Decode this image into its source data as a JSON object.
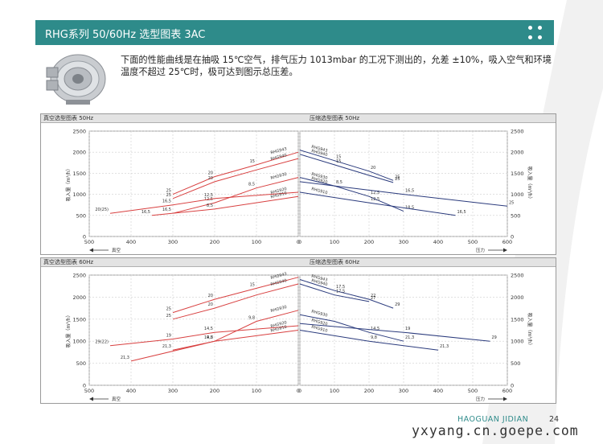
{
  "header": {
    "title": "RHG系列 50/60Hz 选型图表 3AC"
  },
  "intro": "下面的性能曲线是在抽吸 15℃空气，排气压力 1013mbar 的工况下测出的，允差 ±10%，吸入空气和环境温度不超过 25℃时，极可达到图示总压差。",
  "footer": {
    "brand": "HAOGUAN JIDIAN",
    "page": "24",
    "watermark": "yxyang.cn.goepe.com"
  },
  "colors": {
    "accent": "#2e8b8a",
    "vacuum_curve": "#d84040",
    "pressure_curve": "#2a3a7c"
  },
  "icons": {
    "menu": "grid-dots-icon",
    "product": "ring-blower-icon"
  },
  "chart_data": [
    {
      "type": "line",
      "title": "真空选型图表 50Hz",
      "ylabel": "吸入量（m³/h）",
      "x_arrow_label": "真空",
      "x_ticks": [
        500,
        400,
        300,
        200,
        100,
        0
      ],
      "xlim": [
        500,
        0
      ],
      "ylim": [
        0,
        2500
      ],
      "y_ticks": [
        0,
        500,
        1000,
        1500,
        2000,
        2500
      ],
      "series": [
        {
          "name": "RHG943",
          "x": [
            300,
            200,
            100,
            0
          ],
          "y": [
            1000,
            1420,
            1700,
            2000
          ],
          "point_labels": [
            "25",
            "20",
            "15",
            ""
          ]
        },
        {
          "name": "RHG940",
          "x": [
            300,
            200,
            100,
            0
          ],
          "y": [
            900,
            1300,
            1580,
            1850
          ],
          "point_labels": [
            "25",
            "20",
            "",
            ""
          ]
        },
        {
          "name": "RHG930",
          "x": [
            300,
            200,
            100,
            0
          ],
          "y": [
            550,
            800,
            1150,
            1400
          ],
          "point_labels": [
            "16,5",
            "12,5",
            "8,5",
            ""
          ]
        },
        {
          "name": "RHG920",
          "x": [
            450,
            300,
            200,
            0
          ],
          "y": [
            550,
            750,
            900,
            1050
          ],
          "point_labels": [
            "20(25)",
            "16,5",
            "12,5",
            ""
          ]
        },
        {
          "name": "RHG910",
          "x": [
            350,
            200,
            0
          ],
          "y": [
            500,
            650,
            950
          ],
          "point_labels": [
            "16,5",
            "8,5",
            ""
          ]
        }
      ]
    },
    {
      "type": "line",
      "title": "压缩选型图表 50Hz",
      "ylabel": "吸入量（m³/h）",
      "x_arrow_label": "压力",
      "x_ticks": [
        0,
        100,
        200,
        300,
        400,
        500,
        600
      ],
      "xlim": [
        0,
        600
      ],
      "ylim": [
        0,
        2500
      ],
      "y_ticks": [
        0,
        500,
        1000,
        1500,
        2000,
        2500
      ],
      "series": [
        {
          "name": "RHG943",
          "x": [
            0,
            100,
            200,
            270
          ],
          "y": [
            2050,
            1800,
            1550,
            1330
          ],
          "point_labels": [
            "",
            "15",
            "20",
            "25"
          ]
        },
        {
          "name": "RHG940",
          "x": [
            0,
            100,
            200,
            270
          ],
          "y": [
            1950,
            1700,
            1450,
            1280
          ],
          "point_labels": [
            "",
            "15",
            "",
            "25"
          ]
        },
        {
          "name": "RHG930",
          "x": [
            0,
            100,
            200,
            300
          ],
          "y": [
            1400,
            1200,
            950,
            600
          ],
          "point_labels": [
            "",
            "8,5",
            "12,5",
            "18,5"
          ]
        },
        {
          "name": "RHG920",
          "x": [
            0,
            300,
            600
          ],
          "y": [
            1300,
            1000,
            720
          ],
          "point_labels": [
            "",
            "16,5",
            "25"
          ]
        },
        {
          "name": "RHG910",
          "x": [
            0,
            200,
            450
          ],
          "y": [
            1050,
            800,
            500
          ],
          "point_labels": [
            "",
            "12,5",
            "16,5"
          ]
        }
      ]
    },
    {
      "type": "line",
      "title": "真空选型图表 60Hz",
      "ylabel": "吸入量（m³/h）",
      "x_arrow_label": "真空",
      "x_ticks": [
        500,
        400,
        300,
        200,
        100,
        0
      ],
      "xlim": [
        500,
        0
      ],
      "ylim": [
        0,
        2500
      ],
      "y_ticks": [
        0,
        500,
        1000,
        1500,
        2000,
        2500
      ],
      "series": [
        {
          "name": "RHG943",
          "x": [
            300,
            200,
            100,
            0
          ],
          "y": [
            1650,
            1950,
            2200,
            2450
          ],
          "point_labels": [
            "25",
            "20",
            "15",
            ""
          ]
        },
        {
          "name": "RHG940",
          "x": [
            300,
            200,
            100,
            0
          ],
          "y": [
            1500,
            1750,
            2050,
            2300
          ],
          "point_labels": [
            "25",
            "20",
            "",
            ""
          ]
        },
        {
          "name": "RHG930",
          "x": [
            400,
            200,
            100,
            0
          ],
          "y": [
            550,
            1000,
            1450,
            1700
          ],
          "point_labels": [
            "21,3",
            "14,5",
            "9,8",
            ""
          ]
        },
        {
          "name": "RHG920",
          "x": [
            450,
            300,
            200,
            0
          ],
          "y": [
            900,
            1050,
            1200,
            1350
          ],
          "point_labels": [
            "29(22)",
            "19",
            "14,5",
            ""
          ]
        },
        {
          "name": "RHG910",
          "x": [
            300,
            200,
            0
          ],
          "y": [
            800,
            1000,
            1250
          ],
          "point_labels": [
            "21,3",
            "9,8",
            ""
          ]
        }
      ]
    },
    {
      "type": "line",
      "title": "压缩选型图表 60Hz",
      "ylabel": "吸入量（m³/h）",
      "x_arrow_label": "压力",
      "x_ticks": [
        0,
        100,
        200,
        300,
        400,
        500,
        600
      ],
      "xlim": [
        0,
        600
      ],
      "ylim": [
        0,
        2500
      ],
      "y_ticks": [
        0,
        500,
        1000,
        1500,
        2000,
        2500
      ],
      "series": [
        {
          "name": "RHG943",
          "x": [
            0,
            100,
            200,
            270
          ],
          "y": [
            2400,
            2150,
            1950,
            1750
          ],
          "point_labels": [
            "",
            "17,5",
            "22",
            "29"
          ]
        },
        {
          "name": "RHG940",
          "x": [
            0,
            100,
            200
          ],
          "y": [
            2300,
            2050,
            1900
          ],
          "point_labels": [
            "",
            "17,5",
            "27"
          ]
        },
        {
          "name": "RHG930",
          "x": [
            0,
            100,
            200,
            300
          ],
          "y": [
            1600,
            1450,
            1200,
            1000
          ],
          "point_labels": [
            "",
            "",
            "14,5",
            "21,3"
          ]
        },
        {
          "name": "RHG920",
          "x": [
            0,
            300,
            550
          ],
          "y": [
            1400,
            1200,
            1000
          ],
          "point_labels": [
            "",
            "19",
            "29"
          ]
        },
        {
          "name": "RHG910",
          "x": [
            0,
            200,
            400
          ],
          "y": [
            1250,
            1000,
            800
          ],
          "point_labels": [
            "",
            "9,8",
            "21,3"
          ]
        }
      ]
    }
  ]
}
